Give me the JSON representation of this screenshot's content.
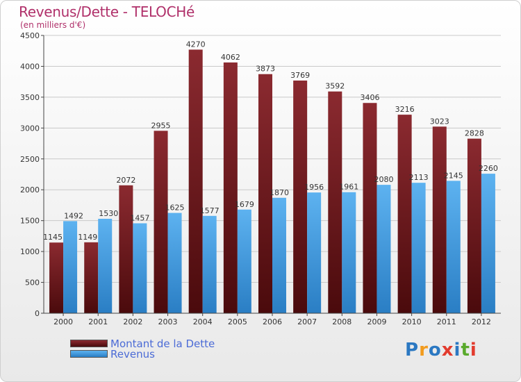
{
  "chart_data": {
    "type": "bar",
    "title": "Revenus/Dette - TELOCHé",
    "subtitle": "(en milliers d'€)",
    "xlabel": "",
    "ylabel": "",
    "ylim": [
      0,
      4500
    ],
    "yticks": [
      0,
      500,
      1000,
      1500,
      2000,
      2500,
      3000,
      3500,
      4000,
      4500
    ],
    "grid": true,
    "categories": [
      "2000",
      "2001",
      "2002",
      "2003",
      "2004",
      "2005",
      "2006",
      "2007",
      "2008",
      "2009",
      "2010",
      "2011",
      "2012"
    ],
    "series": [
      {
        "name": "Montant de la Dette",
        "color": "#7a2327",
        "values": [
          1145,
          1149,
          2072,
          2955,
          4270,
          4062,
          3873,
          3769,
          3592,
          3406,
          3216,
          3023,
          2828
        ]
      },
      {
        "name": "Revenus",
        "color": "#4ea3e6",
        "values": [
          1492,
          1530,
          1457,
          1625,
          1577,
          1679,
          1870,
          1956,
          1961,
          2080,
          2113,
          2145,
          2260
        ]
      }
    ],
    "legend_position": "bottom-left"
  },
  "legend": {
    "dette_label": "Montant de la Dette",
    "revenus_label": "Revenus"
  },
  "logo": {
    "text": "Proxiti",
    "letters": [
      {
        "ch": "P",
        "color": "#2b78c2"
      },
      {
        "ch": "r",
        "color": "#f29b1d"
      },
      {
        "ch": "o",
        "color": "#2b78c2"
      },
      {
        "ch": "x",
        "color": "#e23b2e"
      },
      {
        "ch": "i",
        "color": "#2b78c2"
      },
      {
        "ch": "t",
        "color": "#5aaa2c"
      },
      {
        "ch": "i",
        "color": "#e23b2e"
      }
    ]
  }
}
